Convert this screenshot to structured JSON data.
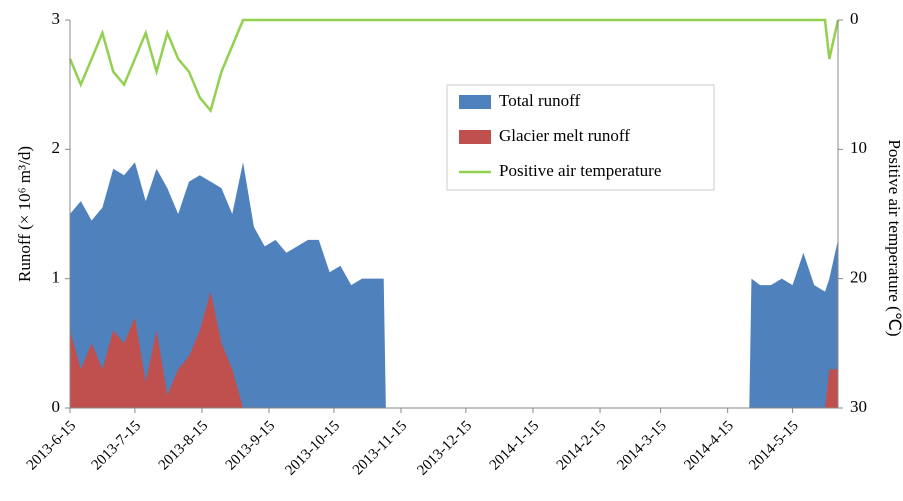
{
  "chart_data": {
    "type": "area",
    "x": [
      "2013-6-15",
      "2013-6-20",
      "2013-6-25",
      "2013-6-30",
      "2013-7-5",
      "2013-7-10",
      "2013-7-15",
      "2013-7-20",
      "2013-7-25",
      "2013-7-30",
      "2013-8-4",
      "2013-8-9",
      "2013-8-14",
      "2013-8-19",
      "2013-8-24",
      "2013-8-29",
      "2013-9-3",
      "2013-9-8",
      "2013-9-13",
      "2013-9-18",
      "2013-9-23",
      "2013-9-28",
      "2013-10-3",
      "2013-10-8",
      "2013-10-13",
      "2013-10-18",
      "2013-10-23",
      "2013-10-28",
      "2013-11-2",
      "2013-11-7",
      "2013-11-8",
      "2014-4-25",
      "2014-4-26",
      "2014-4-30",
      "2014-5-5",
      "2014-5-10",
      "2014-5-15",
      "2014-5-20",
      "2014-5-25",
      "2014-5-30",
      "2014-6-1",
      "2014-6-5"
    ],
    "series": [
      {
        "name": "Total runoff",
        "color": "#4f81bd",
        "values": [
          1.5,
          1.6,
          1.45,
          1.55,
          1.85,
          1.8,
          1.9,
          1.6,
          1.85,
          1.7,
          1.5,
          1.75,
          1.8,
          1.75,
          1.7,
          1.5,
          1.9,
          1.4,
          1.25,
          1.3,
          1.2,
          1.25,
          1.3,
          1.3,
          1.05,
          1.1,
          0.95,
          1.0,
          1.0,
          1.0,
          0,
          0,
          1.0,
          0.95,
          0.95,
          1.0,
          0.95,
          1.2,
          0.95,
          0.9,
          1.0,
          1.3
        ]
      },
      {
        "name": "Glacier melt runoff",
        "color": "#c0504d",
        "values": [
          0.6,
          0.3,
          0.5,
          0.3,
          0.6,
          0.5,
          0.7,
          0.2,
          0.6,
          0.1,
          0.3,
          0.4,
          0.6,
          0.9,
          0.5,
          0.3,
          0,
          0,
          0,
          0,
          0,
          0,
          0,
          0,
          0,
          0,
          0,
          0,
          0,
          0,
          0,
          0,
          0,
          0,
          0,
          0,
          0,
          0,
          0,
          0,
          0.3,
          0.3
        ]
      },
      {
        "name": "Positive air temperature",
        "color": "#92d050",
        "axis": "y2",
        "type": "line",
        "values": [
          3,
          5,
          3,
          1,
          4,
          5,
          3,
          1,
          4,
          1,
          3,
          4,
          6,
          7,
          4,
          2,
          0,
          0,
          0,
          0,
          0,
          0,
          0,
          0,
          0,
          0,
          0,
          0,
          0,
          0,
          0,
          0,
          0,
          0,
          0,
          0,
          0,
          0,
          0,
          0,
          3,
          0
        ]
      }
    ],
    "xlim": [
      "2013-6-15",
      "2014-6-5"
    ],
    "xticks": [
      "2013-6-15",
      "2013-7-15",
      "2013-8-15",
      "2013-9-15",
      "2013-10-15",
      "2013-11-15",
      "2013-12-15",
      "2014-1-15",
      "2014-2-15",
      "2014-3-15",
      "2014-4-15",
      "2014-5-15"
    ],
    "ylim": [
      0,
      3
    ],
    "yticks": [
      0,
      1,
      2,
      3
    ],
    "y2lim": [
      30,
      0
    ],
    "y2ticks": [
      0,
      10,
      20,
      30
    ],
    "ylabel": "Runoff (× 10⁶ m³/d)",
    "y2label": "Positive air temperature (℃)",
    "legend": "upper-right"
  }
}
